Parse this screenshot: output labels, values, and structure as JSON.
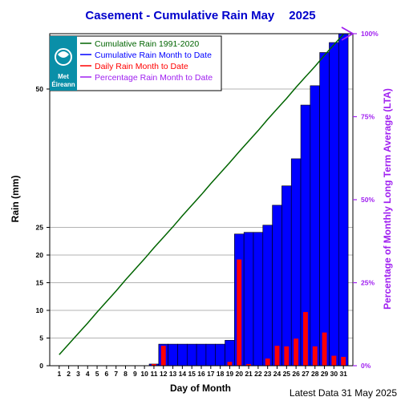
{
  "chart_data": {
    "type": "bar",
    "title_station": "Casement - Cumulative Rain May",
    "title_year": "2025",
    "xlabel": "Day of Month",
    "ylabel": "Rain (mm)",
    "y2label": "Percentage  of Monthly Long Term Average (LTA)",
    "x": [
      1,
      2,
      3,
      4,
      5,
      6,
      7,
      8,
      9,
      10,
      11,
      12,
      13,
      14,
      15,
      16,
      17,
      18,
      19,
      20,
      21,
      22,
      23,
      24,
      25,
      26,
      27,
      28,
      29,
      30,
      31
    ],
    "ylim": [
      0,
      60
    ],
    "yticks": [
      0,
      5,
      10,
      15,
      20,
      25,
      50
    ],
    "y2ticks": [
      "0%",
      "25%",
      "50%",
      "75%",
      "100%"
    ],
    "y2_at_100": 60,
    "grid": true,
    "legend_position": "top-left",
    "series": [
      {
        "name": "Cumulative Rain 1991-2020",
        "type": "line",
        "color": "#006400",
        "values": [
          2.0,
          3.9,
          5.8,
          7.7,
          9.7,
          11.6,
          13.5,
          15.5,
          17.4,
          19.3,
          21.3,
          23.2,
          25.1,
          27.1,
          29.0,
          30.9,
          32.9,
          34.8,
          36.7,
          38.7,
          40.6,
          42.5,
          44.5,
          46.4,
          48.3,
          50.3,
          52.2,
          54.1,
          56.1,
          58.0,
          59.9
        ]
      },
      {
        "name": "Cumulative Rain Month to Date",
        "type": "bar",
        "color": "#0000ff",
        "values": [
          0,
          0,
          0,
          0,
          0,
          0,
          0,
          0,
          0,
          0,
          0.3,
          3.9,
          3.9,
          3.9,
          3.9,
          3.9,
          3.9,
          3.9,
          4.6,
          23.8,
          24.1,
          24.1,
          25.4,
          29.0,
          32.5,
          37.4,
          47.1,
          50.6,
          56.6,
          58.4,
          60.0
        ]
      },
      {
        "name": "Daily Rain Month to Date",
        "type": "bar",
        "color": "#ff0000",
        "values": [
          0,
          0,
          0,
          0,
          0,
          0,
          0,
          0,
          0,
          0,
          0.3,
          3.6,
          0,
          0,
          0,
          0,
          0,
          0,
          0.7,
          19.2,
          0.3,
          0,
          1.3,
          3.6,
          3.5,
          4.9,
          9.7,
          3.5,
          6.0,
          1.8,
          1.6
        ]
      },
      {
        "name": "Percentage Rain Month to Date",
        "type": "marker",
        "color": "#a020f0",
        "value_percent": 100
      }
    ],
    "logo_text_1": "Met",
    "logo_text_2": "Éireann",
    "footer": "Latest Data 31 May 2025"
  }
}
